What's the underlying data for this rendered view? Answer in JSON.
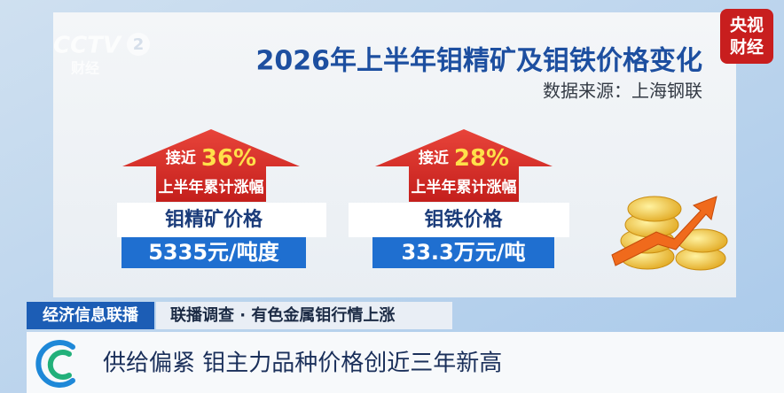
{
  "logo": {
    "channel": "CCTV",
    "number": "2",
    "name": "财经"
  },
  "badge": {
    "line1": "央视",
    "line2": "财经"
  },
  "header": {
    "title": "2026年上半年钼精矿及钼铁价格变化",
    "source": "数据来源：上海钢联"
  },
  "cards": [
    {
      "prefix": "接近",
      "change": "36%",
      "change_label": "上半年累计涨幅",
      "name": "钼精矿价格",
      "price": "5335元/吨度"
    },
    {
      "prefix": "接近",
      "change": "28%",
      "change_label": "上半年累计涨幅",
      "name": "钼铁价格",
      "price": "33.3万元/吨"
    }
  ],
  "ticker": {
    "program": "经济信息联播",
    "topic": "联播调查 · 有色金属钼行情上涨",
    "headline": "供给偏紧 钼主力品种价格创近三年新高"
  }
}
